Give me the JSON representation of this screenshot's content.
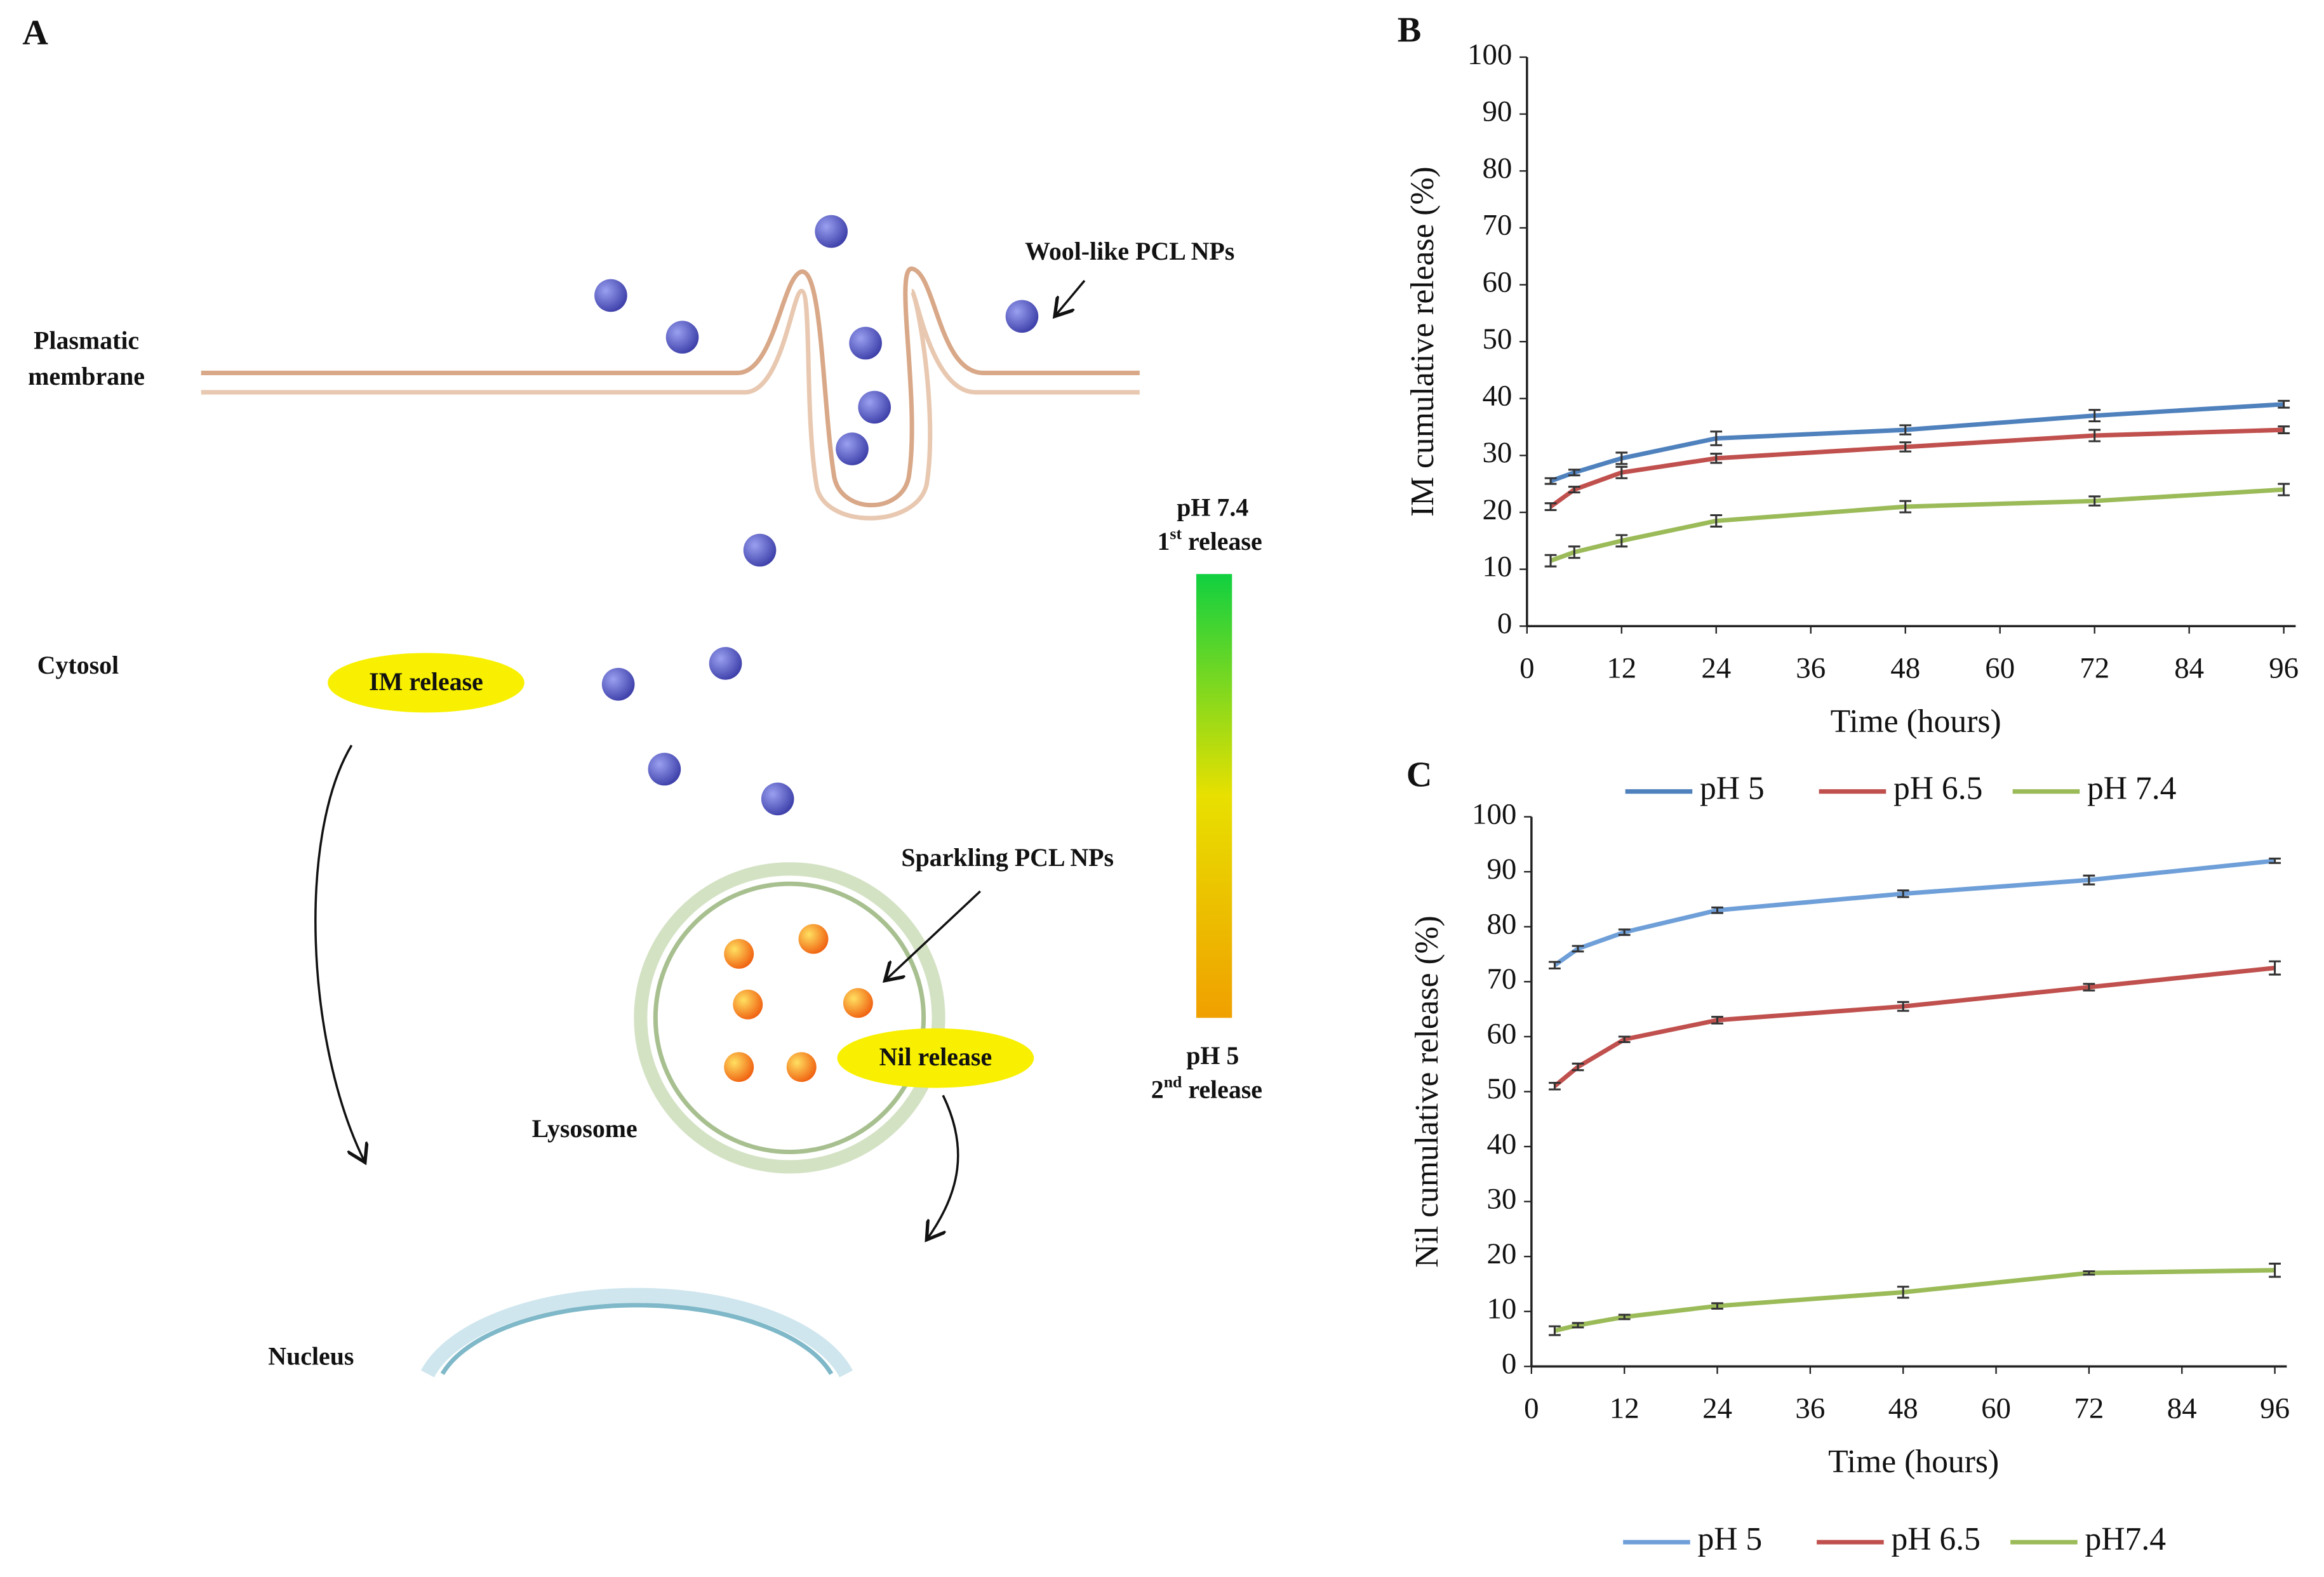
{
  "panel_a": {
    "label": "A",
    "membrane_label": [
      "Plasmatic",
      "membrane"
    ],
    "wool": "Wool-like PCL NPs",
    "cytosol": "Cytosol",
    "im_release": "IM release",
    "ph_high": "pH 7.4",
    "first_release": [
      "1",
      "st",
      " release"
    ],
    "sparkling": "Sparkling PCL NPs",
    "nil_release": "Nil release",
    "lysosome": "Lysosome",
    "ph_low": "pH 5",
    "second_release": [
      "2",
      "nd",
      " release"
    ],
    "nucleus": "Nucleus"
  },
  "chart_data": [
    {
      "type": "line",
      "panel": "B",
      "x_label": "Time (hours)",
      "y_label": "IM cumulative release (%)",
      "x": [
        3,
        6,
        12,
        24,
        48,
        72,
        96
      ],
      "xlim": [
        0,
        96
      ],
      "xticks": [
        0,
        12,
        24,
        36,
        48,
        60,
        72,
        84,
        96
      ],
      "ylim": [
        0,
        100
      ],
      "yticks": [
        0,
        10,
        20,
        30,
        40,
        50,
        60,
        70,
        80,
        90,
        100
      ],
      "grid": false,
      "legend": "bottom",
      "series": [
        {
          "name": "pH 5",
          "color": "#4f81bd",
          "values": [
            25.5,
            27,
            29.5,
            33,
            34.5,
            37,
            39
          ],
          "errors": [
            0.5,
            0.5,
            1,
            1.2,
            0.8,
            1,
            0.6
          ]
        },
        {
          "name": "pH 6.5",
          "color": "#c0504d",
          "values": [
            21,
            24,
            27,
            29.5,
            31.5,
            33.5,
            34.5
          ],
          "errors": [
            0.6,
            0.5,
            1,
            0.8,
            0.8,
            1,
            0.6
          ]
        },
        {
          "name": "pH 7.4",
          "color": "#9bbb59",
          "values": [
            11.5,
            13,
            15,
            18.5,
            21,
            22,
            24
          ],
          "errors": [
            1,
            1,
            1,
            1,
            1,
            0.8,
            1
          ]
        }
      ]
    },
    {
      "type": "line",
      "panel": "C",
      "x_label": "Time (hours)",
      "y_label": "Nil cumulative release (%)",
      "x": [
        3,
        6,
        12,
        24,
        48,
        72,
        96
      ],
      "xlim": [
        0,
        96
      ],
      "xticks": [
        0,
        12,
        24,
        36,
        48,
        60,
        72,
        84,
        96
      ],
      "ylim": [
        0,
        100
      ],
      "yticks": [
        0,
        10,
        20,
        30,
        40,
        50,
        60,
        70,
        80,
        90,
        100
      ],
      "grid": false,
      "legend": "bottom",
      "series": [
        {
          "name": "pH 5",
          "color": "#6f9fd8",
          "values": [
            73,
            76,
            79,
            83,
            86,
            88.5,
            92
          ],
          "errors": [
            0.6,
            0.5,
            0.5,
            0.5,
            0.6,
            0.8,
            0.4
          ]
        },
        {
          "name": "pH 6.5",
          "color": "#c0504d",
          "values": [
            51,
            54.5,
            59.5,
            63,
            65.5,
            69,
            72.5
          ],
          "errors": [
            0.6,
            0.6,
            0.5,
            0.6,
            0.8,
            0.6,
            1.2
          ]
        },
        {
          "name": "pH7.4",
          "color": "#9bbb59",
          "values": [
            6.5,
            7.5,
            9,
            11,
            13.5,
            17,
            17.5
          ],
          "errors": [
            0.8,
            0.4,
            0.4,
            0.5,
            1,
            0.3,
            1.2
          ]
        }
      ]
    }
  ]
}
